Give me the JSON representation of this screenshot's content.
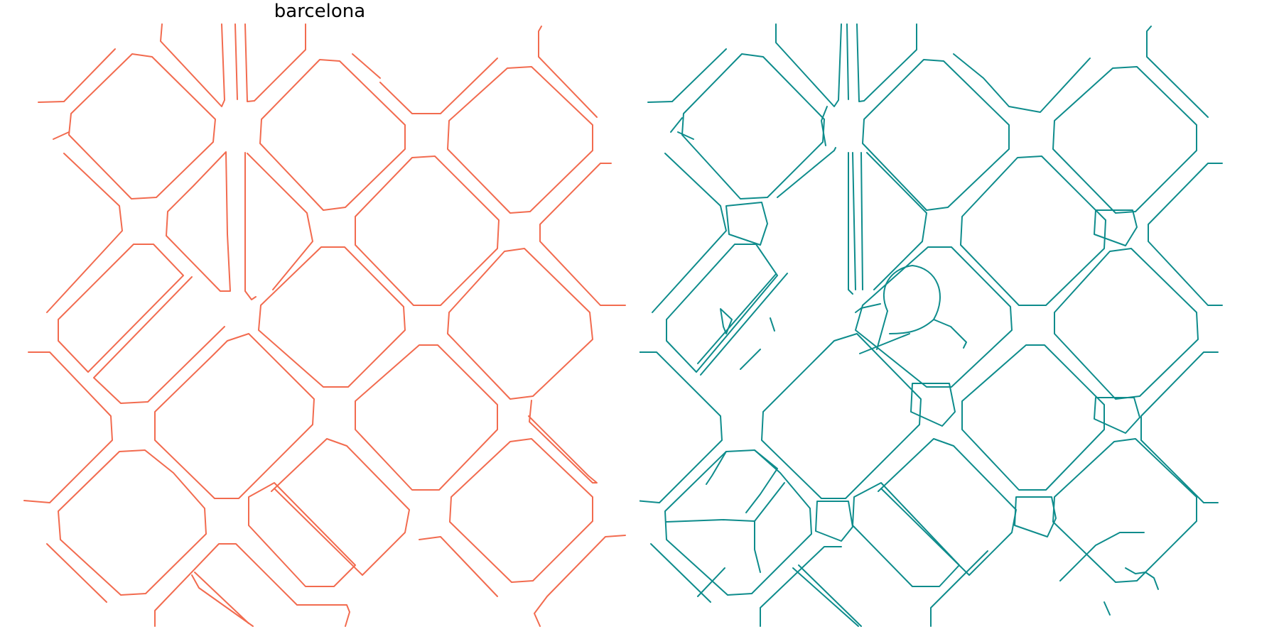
{
  "figure": {
    "title": "barcelona"
  },
  "panels": [
    {
      "name": "left-map",
      "line_color": "#f26b4f"
    },
    {
      "name": "right-map",
      "line_color": "#0e8c8c"
    }
  ]
}
